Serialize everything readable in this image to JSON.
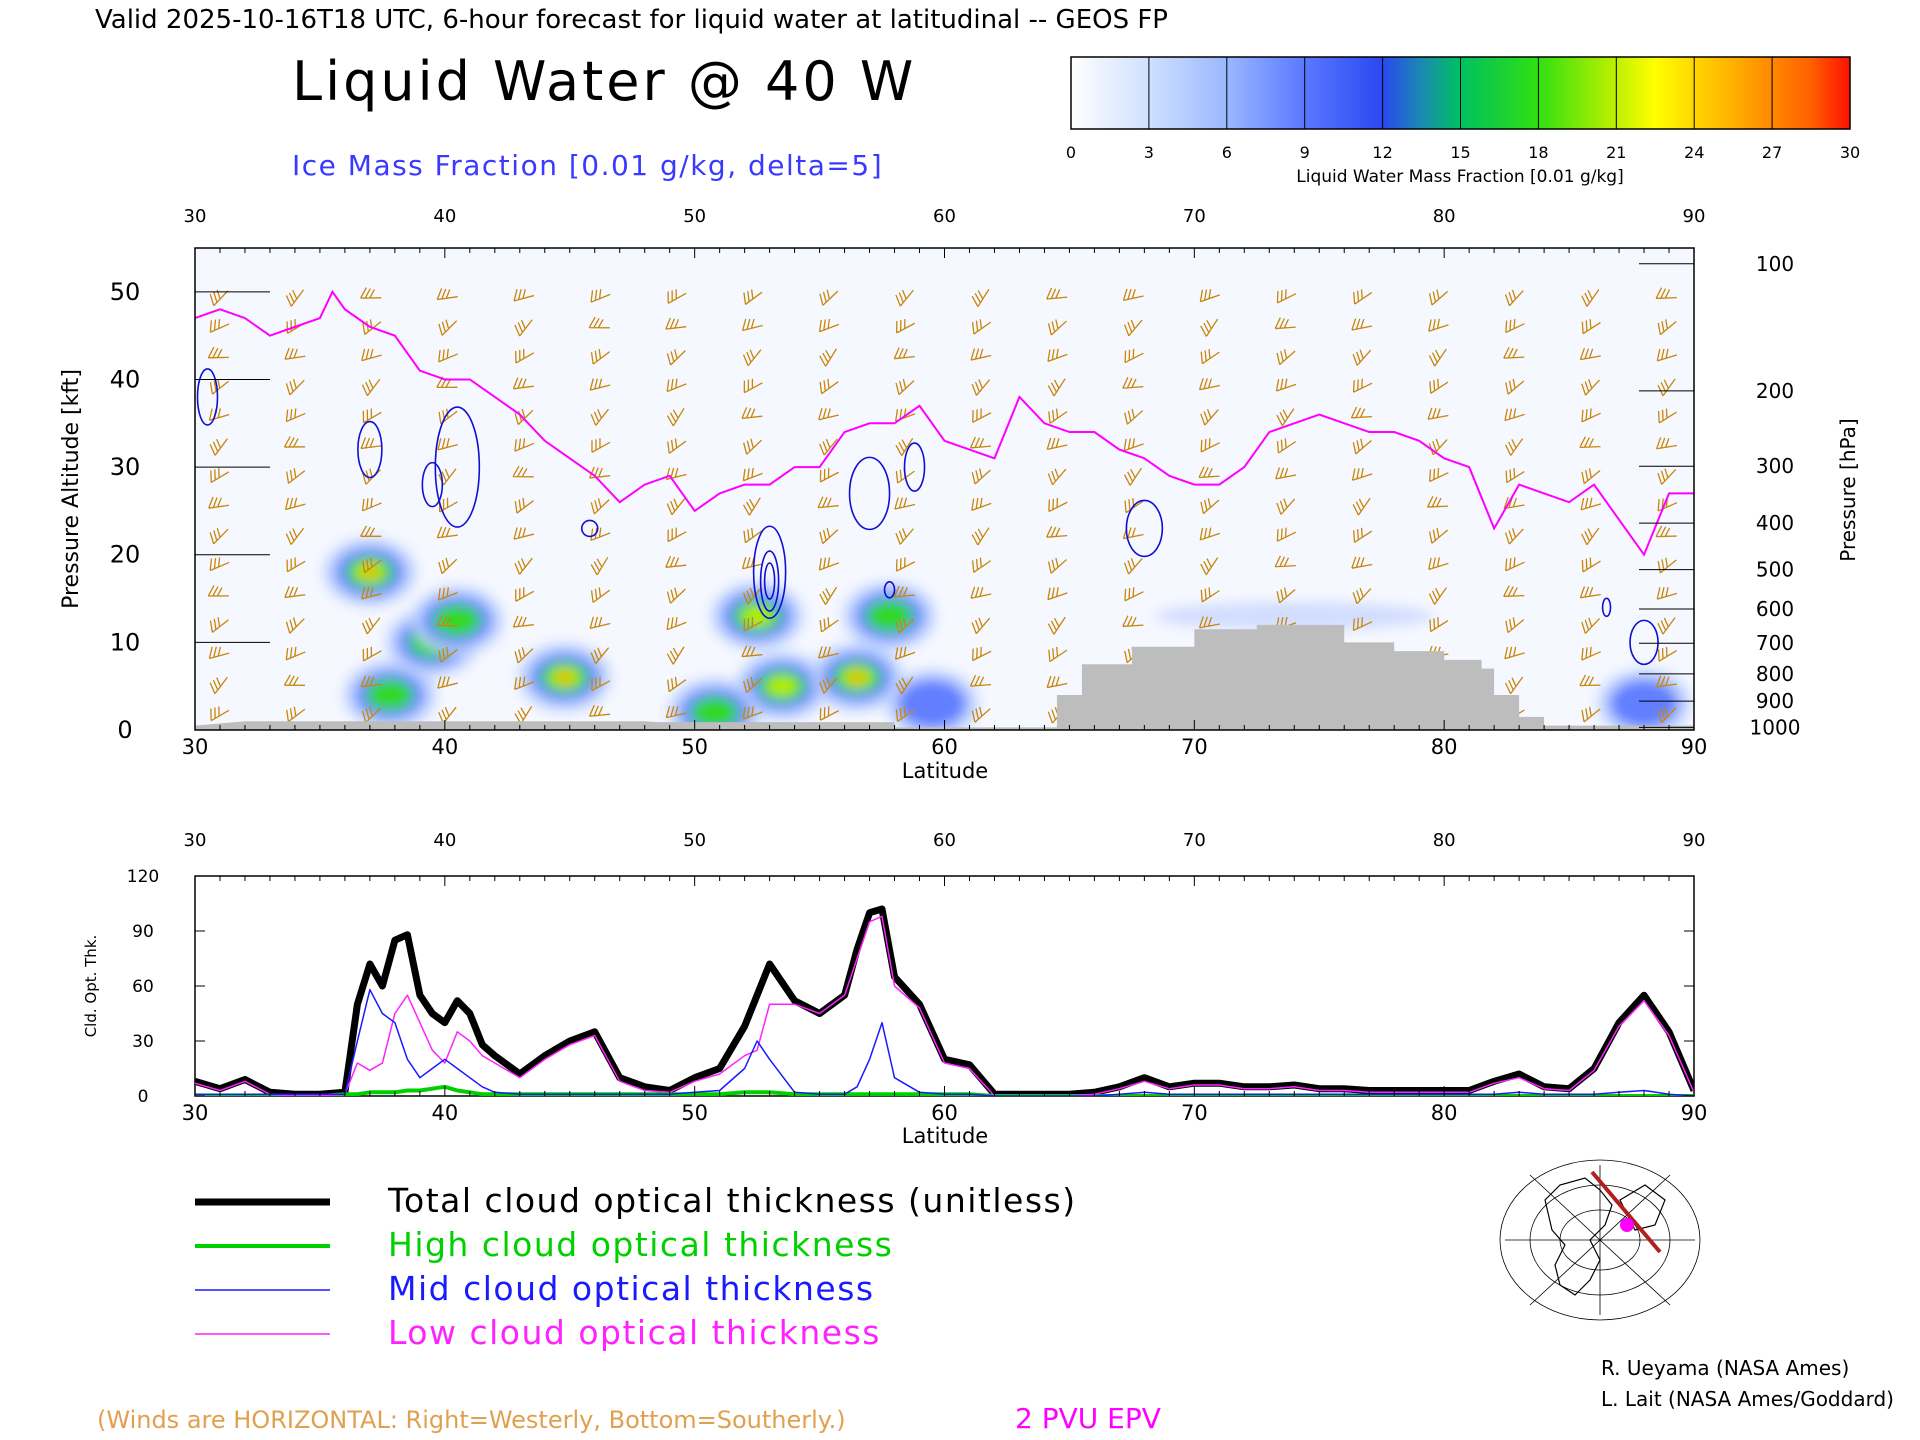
{
  "header": {
    "valid_line": "Valid 2025-10-16T18 UTC, 6-hour forecast for liquid water at latitudinal -- GEOS FP",
    "title": "Liquid Water @ 40 W",
    "subtitle": "Ice Mass Fraction [0.01 g/kg, delta=5]"
  },
  "colorbar": {
    "label": "Liquid Water Mass Fraction [0.01 g/kg]",
    "ticks": [
      "0",
      "3",
      "6",
      "9",
      "12",
      "15",
      "18",
      "21",
      "24",
      "27",
      "30"
    ]
  },
  "colors": {
    "wind_barbs": "#c8860a",
    "ice_contours": "#1010d0",
    "epv": "#ff00ff",
    "terrain": "#bdbdbd",
    "total": "#000000",
    "high": "#00d000",
    "mid": "#1a1aff",
    "low": "#ff22ff"
  },
  "footer": {
    "winds_note": "(Winds are HORIZONTAL: Right=Westerly, Bottom=Southerly.)",
    "epv_label": "2 PVU EPV",
    "credit1": "R. Ueyama (NASA Ames)",
    "credit2": "L. Lait (NASA Ames/Goddard)"
  },
  "legend": [
    {
      "label": "Total cloud optical thickness (unitless)",
      "color": "#000000",
      "width": 7
    },
    {
      "label": "High cloud optical thickness",
      "color": "#00d000",
      "width": 4
    },
    {
      "label": "Mid cloud optical thickness",
      "color": "#1a1aff",
      "width": 1.5
    },
    {
      "label": "Low cloud optical thickness",
      "color": "#ff22ff",
      "width": 1.5
    }
  ],
  "chart_data": [
    {
      "type": "heatmap",
      "title": "Liquid Water @ 40 W",
      "xlabel": "Latitude",
      "ylabel": "Pressure Altitude [kft]",
      "y2label": "Pressure [hPa]",
      "xlim": [
        30,
        90
      ],
      "ylim": [
        0,
        55
      ],
      "x_ticks": [
        "30",
        "40",
        "50",
        "60",
        "70",
        "80",
        "90"
      ],
      "y_ticks": [
        "0",
        "10",
        "20",
        "30",
        "40",
        "50"
      ],
      "pressure_ticks": [
        "100",
        "200",
        "300",
        "400",
        "500",
        "600",
        "700",
        "800",
        "900",
        "1000"
      ],
      "pressure_tick_kft": [
        53.2,
        38.7,
        30.1,
        23.6,
        18.3,
        13.8,
        9.9,
        6.4,
        3.3,
        0.3
      ],
      "liquid_water_blobs": [
        {
          "lat": 37,
          "kft": 18,
          "peak": 27
        },
        {
          "lat": 39.5,
          "kft": 10,
          "peak": 20
        },
        {
          "lat": 40.5,
          "kft": 12.5,
          "peak": 18
        },
        {
          "lat": 37.8,
          "kft": 4,
          "peak": 18
        },
        {
          "lat": 44.8,
          "kft": 6,
          "peak": 27
        },
        {
          "lat": 52.5,
          "kft": 13,
          "peak": 22
        },
        {
          "lat": 53.5,
          "kft": 5,
          "peak": 22
        },
        {
          "lat": 56.5,
          "kft": 6,
          "peak": 28
        },
        {
          "lat": 57.8,
          "kft": 13,
          "peak": 16
        },
        {
          "lat": 50.8,
          "kft": 2,
          "peak": 16
        },
        {
          "lat": 59.5,
          "kft": 3,
          "peak": 15
        },
        {
          "lat": 88,
          "kft": 3,
          "peak": 14
        }
      ],
      "epv_2pvu_kft": [
        [
          30,
          47
        ],
        [
          31,
          48
        ],
        [
          32,
          47
        ],
        [
          33,
          45
        ],
        [
          34,
          46
        ],
        [
          35,
          47
        ],
        [
          35.5,
          50
        ],
        [
          36,
          48
        ],
        [
          37,
          46
        ],
        [
          38,
          45
        ],
        [
          39,
          41
        ],
        [
          40,
          40
        ],
        [
          41,
          40
        ],
        [
          42,
          38
        ],
        [
          43,
          36
        ],
        [
          44,
          33
        ],
        [
          45,
          31
        ],
        [
          46,
          29
        ],
        [
          47,
          26
        ],
        [
          48,
          28
        ],
        [
          49,
          29
        ],
        [
          50,
          25
        ],
        [
          51,
          27
        ],
        [
          52,
          28
        ],
        [
          53,
          28
        ],
        [
          54,
          30
        ],
        [
          55,
          30
        ],
        [
          56,
          34
        ],
        [
          57,
          35
        ],
        [
          58,
          35
        ],
        [
          59,
          37
        ],
        [
          60,
          33
        ],
        [
          61,
          32
        ],
        [
          62,
          31
        ],
        [
          63,
          38
        ],
        [
          64,
          35
        ],
        [
          65,
          34
        ],
        [
          66,
          34
        ],
        [
          67,
          32
        ],
        [
          68,
          31
        ],
        [
          69,
          29
        ],
        [
          70,
          28
        ],
        [
          71,
          28
        ],
        [
          72,
          30
        ],
        [
          73,
          34
        ],
        [
          74,
          35
        ],
        [
          75,
          36
        ],
        [
          76,
          35
        ],
        [
          77,
          34
        ],
        [
          78,
          34
        ],
        [
          79,
          33
        ],
        [
          80,
          31
        ],
        [
          81,
          30
        ],
        [
          82,
          23
        ],
        [
          83,
          28
        ],
        [
          84,
          27
        ],
        [
          85,
          26
        ],
        [
          86,
          28
        ],
        [
          87,
          24
        ],
        [
          88,
          20
        ],
        [
          89,
          27
        ],
        [
          90,
          27
        ]
      ],
      "terrain_kft": [
        [
          30,
          0.5
        ],
        [
          32,
          1
        ],
        [
          48,
          1
        ],
        [
          48.5,
          0.9
        ],
        [
          58,
          0.9
        ],
        [
          58,
          0.3
        ],
        [
          64.5,
          0.3
        ],
        [
          64.5,
          4
        ],
        [
          65.5,
          4
        ],
        [
          65.5,
          7.5
        ],
        [
          67.5,
          7.5
        ],
        [
          67.5,
          9.5
        ],
        [
          70,
          9.5
        ],
        [
          70,
          11.5
        ],
        [
          72.5,
          11.5
        ],
        [
          72.5,
          12
        ],
        [
          76,
          12
        ],
        [
          76,
          10
        ],
        [
          78,
          10
        ],
        [
          78,
          9
        ],
        [
          80,
          9
        ],
        [
          80,
          8
        ],
        [
          81.5,
          8
        ],
        [
          81.5,
          7
        ],
        [
          82,
          7
        ],
        [
          82,
          4
        ],
        [
          83,
          4
        ],
        [
          83,
          1.5
        ],
        [
          84,
          1.5
        ],
        [
          84,
          0.5
        ],
        [
          90,
          0.5
        ]
      ]
    },
    {
      "type": "line",
      "xlabel": "Latitude",
      "ylabel": "Cld. Opt. Thk.",
      "xlim": [
        30,
        90
      ],
      "ylim": [
        0,
        120
      ],
      "x_ticks": [
        "30",
        "40",
        "50",
        "60",
        "70",
        "80",
        "90"
      ],
      "y_ticks": [
        "0",
        "30",
        "60",
        "90",
        "120"
      ],
      "x": [
        30,
        31,
        32,
        33,
        34,
        35,
        36,
        36.5,
        37,
        37.5,
        38,
        38.5,
        39,
        39.5,
        40,
        40.5,
        41,
        41.5,
        42,
        43,
        44,
        45,
        46,
        47,
        48,
        49,
        50,
        51,
        52,
        52.5,
        53,
        54,
        55,
        56,
        56.5,
        57,
        57.5,
        58,
        59,
        60,
        61,
        62,
        63,
        64,
        65,
        66,
        67,
        68,
        69,
        70,
        71,
        72,
        73,
        74,
        75,
        76,
        77,
        78,
        79,
        80,
        81,
        82,
        83,
        84,
        85,
        86,
        87,
        88,
        89,
        90
      ],
      "series": [
        {
          "name": "Total cloud optical thickness (unitless)",
          "values": [
            8,
            4,
            9,
            2,
            1,
            1,
            2,
            50,
            72,
            60,
            85,
            88,
            55,
            45,
            40,
            52,
            45,
            28,
            22,
            12,
            22,
            30,
            35,
            10,
            5,
            3,
            10,
            15,
            38,
            55,
            72,
            52,
            45,
            55,
            80,
            100,
            102,
            65,
            50,
            20,
            17,
            1,
            1,
            1,
            1,
            2,
            5,
            10,
            5,
            7,
            7,
            5,
            5,
            6,
            4,
            4,
            3,
            3,
            3,
            3,
            3,
            8,
            12,
            5,
            4,
            15,
            40,
            55,
            35,
            3
          ]
        },
        {
          "name": "High cloud optical thickness",
          "values": [
            0,
            0,
            0,
            0,
            0,
            0,
            1,
            1,
            2,
            2,
            2,
            3,
            3,
            4,
            5,
            3,
            2,
            1,
            1,
            1,
            1,
            1,
            1,
            1,
            1,
            1,
            1,
            1,
            2,
            2,
            2,
            1,
            1,
            1,
            1,
            1,
            1,
            1,
            1,
            1,
            1,
            0,
            0,
            0,
            0,
            0,
            0,
            0,
            0,
            0,
            0,
            0,
            0,
            0,
            0,
            0,
            0,
            0,
            0,
            0,
            0,
            0,
            0,
            0,
            0,
            0,
            0,
            0,
            0,
            0
          ]
        },
        {
          "name": "Mid cloud optical thickness",
          "values": [
            1,
            1,
            1,
            1,
            1,
            1,
            1,
            30,
            58,
            45,
            40,
            20,
            10,
            15,
            20,
            15,
            10,
            5,
            2,
            1,
            1,
            1,
            1,
            1,
            1,
            1,
            2,
            3,
            15,
            30,
            20,
            2,
            1,
            1,
            5,
            20,
            40,
            10,
            2,
            1,
            1,
            0,
            0,
            0,
            0,
            0,
            1,
            2,
            1,
            1,
            1,
            1,
            1,
            1,
            1,
            1,
            1,
            1,
            1,
            1,
            1,
            1,
            2,
            1,
            1,
            1,
            2,
            3,
            1,
            0
          ]
        },
        {
          "name": "Low cloud optical thickness",
          "values": [
            7,
            3,
            8,
            1,
            0,
            0,
            1,
            18,
            14,
            18,
            45,
            55,
            40,
            25,
            18,
            35,
            30,
            22,
            18,
            10,
            20,
            28,
            33,
            8,
            3,
            2,
            8,
            12,
            22,
            25,
            50,
            50,
            45,
            55,
            75,
            95,
            98,
            60,
            48,
            18,
            15,
            0,
            0,
            0,
            0,
            1,
            4,
            8,
            4,
            6,
            6,
            4,
            4,
            5,
            3,
            3,
            2,
            2,
            2,
            2,
            2,
            7,
            10,
            4,
            3,
            14,
            38,
            52,
            33,
            2
          ]
        }
      ]
    }
  ]
}
